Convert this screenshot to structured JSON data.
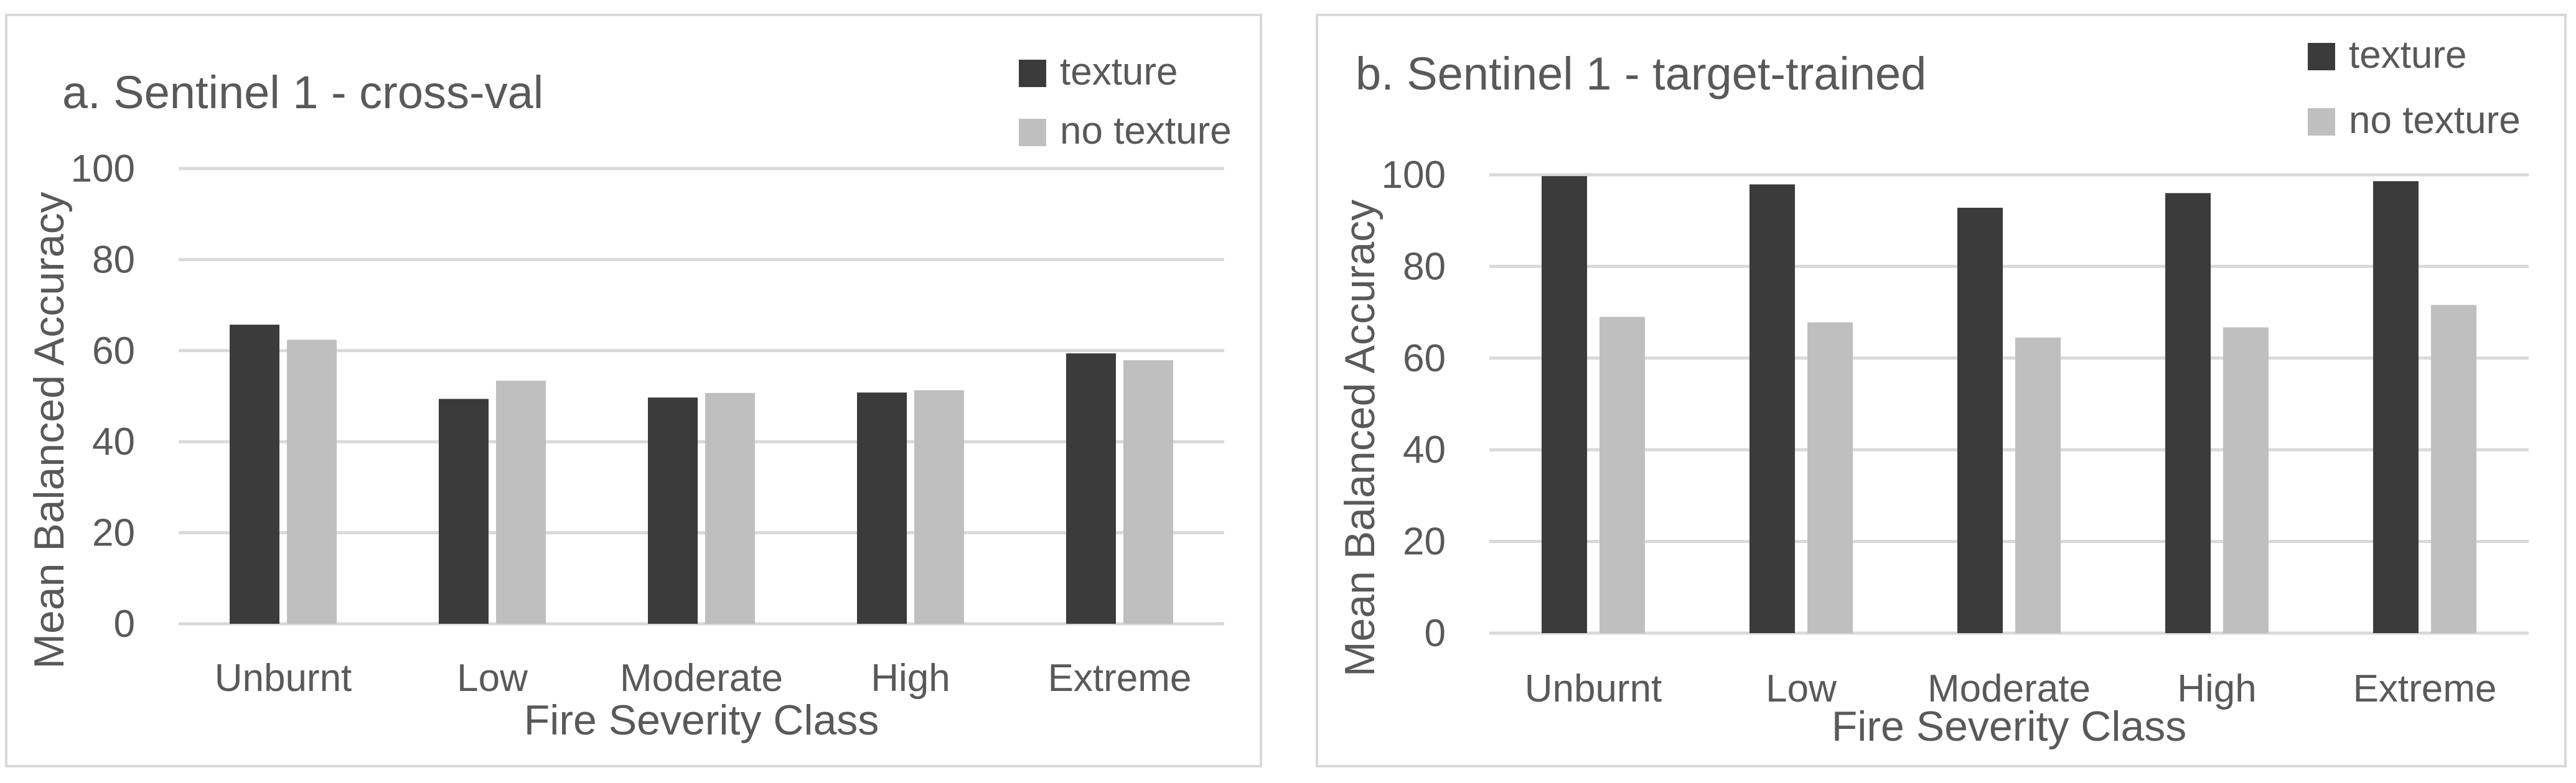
{
  "colors": {
    "texture": "#3b3b3b",
    "no_texture": "#bfbfbf",
    "grid": "#d9d9d9",
    "text": "#595959"
  },
  "chart_data": [
    {
      "type": "bar",
      "title": "a. Sentinel 1 - cross-val",
      "xlabel": "Fire Severity Class",
      "ylabel": "Mean Balanced Accuracy",
      "categories": [
        "Unburnt",
        "Low",
        "Moderate",
        "High",
        "Extreme"
      ],
      "series": [
        {
          "name": "texture",
          "values": [
            65.7,
            49.4,
            49.7,
            50.8,
            59.4
          ]
        },
        {
          "name": "no texture",
          "values": [
            62.4,
            53.4,
            50.7,
            51.3,
            57.9
          ]
        }
      ],
      "ylim": [
        0,
        100
      ],
      "yticks": [
        "0",
        "20",
        "40",
        "60",
        "80",
        "100"
      ],
      "grid": true,
      "legend": "top-right"
    },
    {
      "type": "bar",
      "title": "b. Sentinel 1 - target-trained",
      "xlabel": "Fire Severity Class",
      "ylabel": "Mean Balanced Accuracy",
      "categories": [
        "Unburnt",
        "Low",
        "Moderate",
        "High",
        "Extreme"
      ],
      "series": [
        {
          "name": "texture",
          "values": [
            99.7,
            97.9,
            92.8,
            96.0,
            98.6
          ]
        },
        {
          "name": "no texture",
          "values": [
            69.0,
            67.8,
            64.5,
            66.7,
            71.6
          ]
        }
      ],
      "ylim": [
        0,
        100
      ],
      "yticks": [
        "0",
        "20",
        "40",
        "60",
        "80",
        "100"
      ],
      "grid": true,
      "legend": "top-right"
    }
  ]
}
